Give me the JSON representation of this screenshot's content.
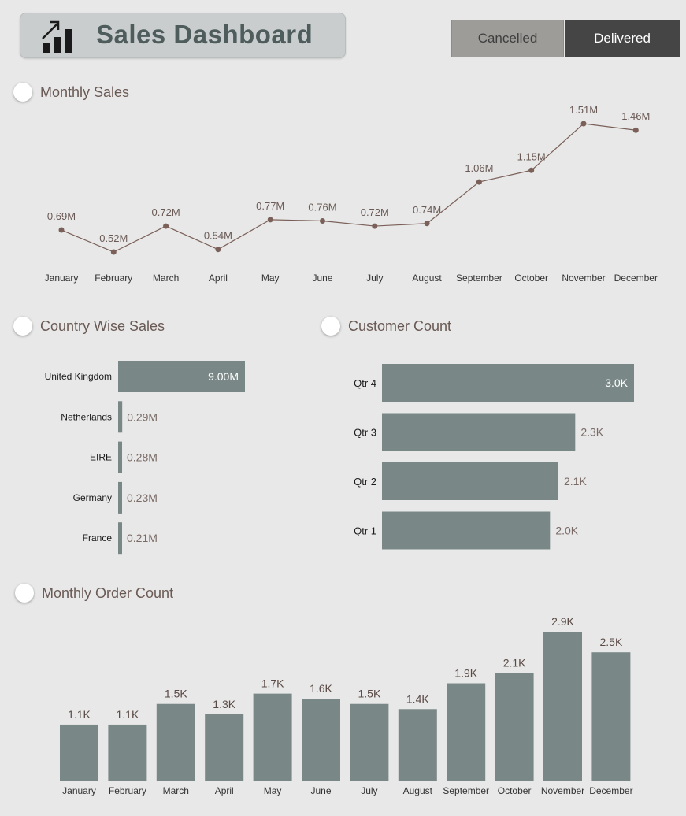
{
  "header": {
    "title": "Sales Dashboard",
    "logo_icon": "chart-growth-icon"
  },
  "filters": {
    "cancelled_label": "Cancelled",
    "delivered_label": "Delivered",
    "selected": "Delivered"
  },
  "colors": {
    "bar": "#7a8787",
    "line": "#7a6058",
    "text": "#6a5a55",
    "axis_text": "#333333"
  },
  "sections": {
    "monthly_sales": "Monthly Sales",
    "country_sales": "Country Wise Sales",
    "customer_count": "Customer Count",
    "order_count": "Monthly Order Count"
  },
  "chart_data": [
    {
      "id": "monthly_sales",
      "type": "line",
      "title": "Monthly Sales",
      "categories": [
        "January",
        "February",
        "March",
        "April",
        "May",
        "June",
        "July",
        "August",
        "September",
        "October",
        "November",
        "December"
      ],
      "values": [
        0.69,
        0.52,
        0.72,
        0.54,
        0.77,
        0.76,
        0.72,
        0.74,
        1.06,
        1.15,
        1.51,
        1.46
      ],
      "labels": [
        "0.69M",
        "0.52M",
        "0.72M",
        "0.54M",
        "0.77M",
        "0.76M",
        "0.72M",
        "0.74M",
        "1.06M",
        "1.15M",
        "1.51M",
        "1.46M"
      ],
      "unit": "M"
    },
    {
      "id": "country_sales",
      "type": "bar",
      "orientation": "horizontal",
      "title": "Country Wise Sales",
      "categories": [
        "United Kingdom",
        "Netherlands",
        "EIRE",
        "Germany",
        "France"
      ],
      "values": [
        9.0,
        0.29,
        0.28,
        0.23,
        0.21
      ],
      "labels": [
        "9.00M",
        "0.29M",
        "0.28M",
        "0.23M",
        "0.21M"
      ]
    },
    {
      "id": "customer_count",
      "type": "bar",
      "orientation": "horizontal",
      "title": "Customer Count",
      "categories": [
        "Qtr 4",
        "Qtr 3",
        "Qtr 2",
        "Qtr 1"
      ],
      "values": [
        3.0,
        2.3,
        2.1,
        2.0
      ],
      "labels": [
        "3.0K",
        "2.3K",
        "2.1K",
        "2.0K"
      ]
    },
    {
      "id": "order_count",
      "type": "bar",
      "orientation": "vertical",
      "title": "Monthly Order Count",
      "categories": [
        "January",
        "February",
        "March",
        "April",
        "May",
        "June",
        "July",
        "August",
        "September",
        "October",
        "November",
        "December"
      ],
      "values": [
        1.1,
        1.1,
        1.5,
        1.3,
        1.7,
        1.6,
        1.5,
        1.4,
        1.9,
        2.1,
        2.9,
        2.5
      ],
      "labels": [
        "1.1K",
        "1.1K",
        "1.5K",
        "1.3K",
        "1.7K",
        "1.6K",
        "1.5K",
        "1.4K",
        "1.9K",
        "2.1K",
        "2.9K",
        "2.5K"
      ]
    }
  ]
}
